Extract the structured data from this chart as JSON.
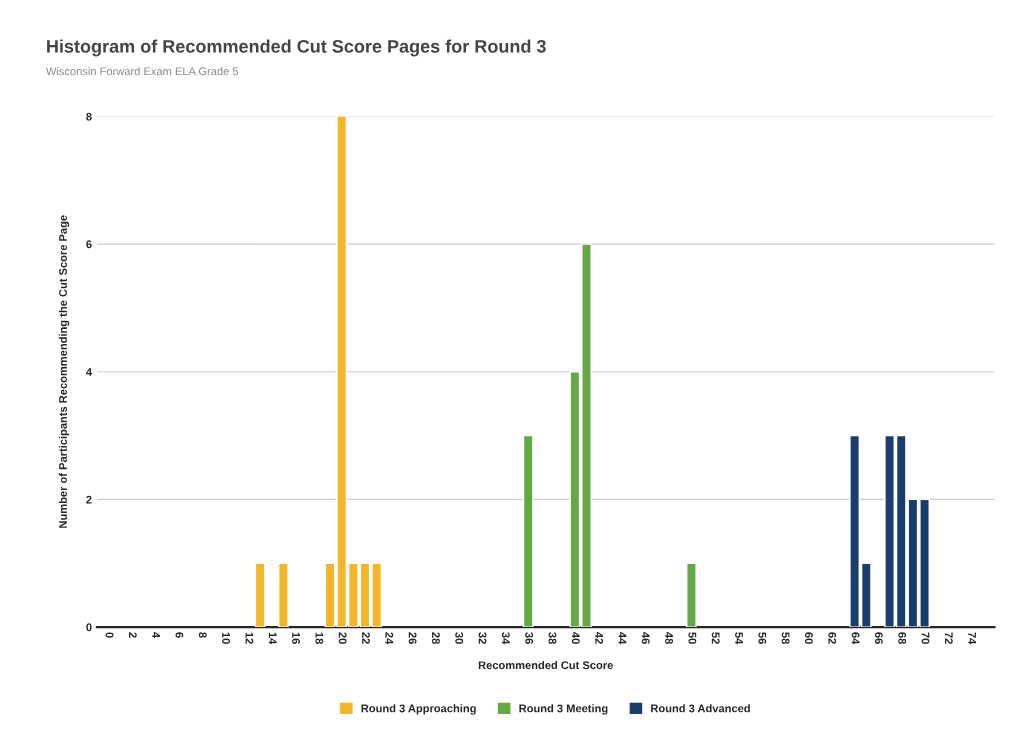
{
  "chart_data": {
    "type": "bar",
    "title": "Histogram of Recommended Cut Score Pages for Round 3",
    "subtitle": "Wisconsin Forward Exam ELA Grade 5",
    "xlabel": "Recommended Cut Score",
    "ylabel": "Number of Participants Recommending the Cut Score Page",
    "series": [
      {
        "name": "Round 3 Approaching",
        "color": "#f4b52a",
        "x": [
          13,
          15,
          19,
          20,
          21,
          22,
          23
        ],
        "values": [
          1,
          1,
          1,
          8,
          1,
          1,
          1
        ]
      },
      {
        "name": "Round 3 Meeting",
        "color": "#63a845",
        "x": [
          36,
          40,
          41,
          50
        ],
        "values": [
          3,
          4,
          6,
          1
        ]
      },
      {
        "name": "Round 3 Advanced",
        "color": "#1b3d6d",
        "x": [
          64,
          65,
          67,
          68,
          69,
          70
        ],
        "values": [
          3,
          1,
          3,
          3,
          2,
          2
        ]
      }
    ],
    "xlim": [
      -1,
      76
    ],
    "xticks": [
      0,
      2,
      4,
      6,
      8,
      10,
      12,
      14,
      16,
      18,
      20,
      22,
      24,
      26,
      28,
      30,
      32,
      34,
      36,
      38,
      40,
      42,
      44,
      46,
      48,
      50,
      52,
      54,
      56,
      58,
      60,
      62,
      64,
      66,
      68,
      70,
      72,
      74
    ],
    "ylim": [
      0,
      8
    ],
    "yticks": [
      0,
      2,
      4,
      6,
      8
    ],
    "grid": "y",
    "legend": "bottom"
  }
}
